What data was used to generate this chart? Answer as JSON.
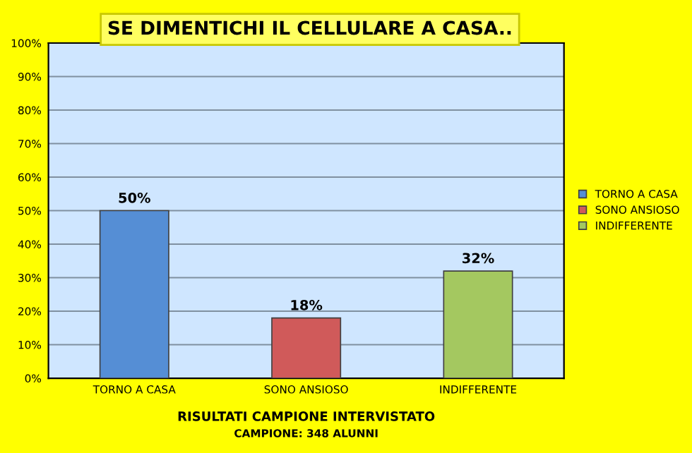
{
  "chart_data": {
    "type": "bar",
    "title": "SE DIMENTICHI IL CELLULARE A CASA..",
    "categories": [
      "TORNO A CASA",
      "SONO ANSIOSO",
      "INDIFFERENTE"
    ],
    "series": [
      {
        "name": "TORNO A CASA",
        "color": "#558ed5",
        "values": [
          50,
          null,
          null
        ]
      },
      {
        "name": "SONO ANSIOSO",
        "color": "#d05a5a",
        "values": [
          null,
          18,
          null
        ]
      },
      {
        "name": "INDIFFERENTE",
        "color": "#a4c860",
        "values": [
          null,
          null,
          32
        ]
      }
    ],
    "xlabel": "RISULTATI CAMPIONE INTERVISTATO",
    "annotations": [
      "CAMPIONE: 348 ALUNNI"
    ],
    "ylim": [
      0,
      100
    ],
    "yticks": [
      {
        "value": 0,
        "label": "0%"
      },
      {
        "value": 10,
        "label": "10%"
      },
      {
        "value": 20,
        "label": "20%"
      },
      {
        "value": 30,
        "label": "30%"
      },
      {
        "value": 40,
        "label": "40%"
      },
      {
        "value": 50,
        "label": "50%"
      },
      {
        "value": 60,
        "label": "60%"
      },
      {
        "value": 70,
        "label": "70%"
      },
      {
        "value": 80,
        "label": "80%"
      },
      {
        "value": 90,
        "label": "90%"
      },
      {
        "value": 100,
        "label": "100%"
      }
    ],
    "value_labels": [
      "50%",
      "18%",
      "32%"
    ],
    "grid": "y",
    "legend": "right"
  }
}
